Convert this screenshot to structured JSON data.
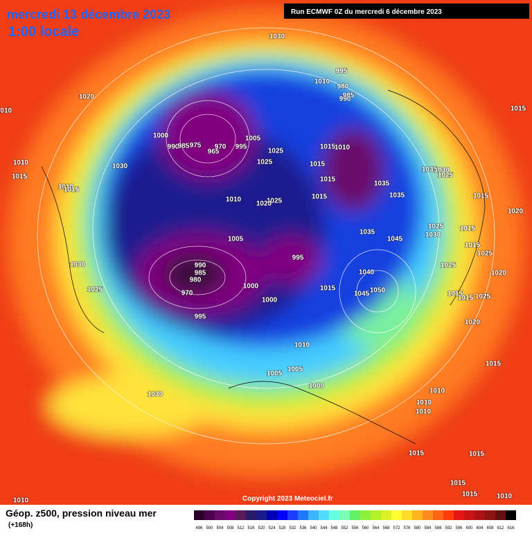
{
  "header": {
    "title": "mercredi 13 décembre 2023",
    "subtitle": "1:00 locale",
    "run": "Run ECMWF 0Z du mercredi 6 décembre 2023"
  },
  "copyright": "Copyright 2023 Meteociel.fr",
  "legend": {
    "title": "Géop. z500, pression niveau mer",
    "lead": "(+168h)",
    "values": [
      496,
      500,
      504,
      508,
      512,
      516,
      520,
      524,
      528,
      532,
      536,
      540,
      544,
      548,
      552,
      556,
      560,
      564,
      568,
      572,
      576,
      580,
      584,
      588,
      592,
      596,
      600,
      604,
      608,
      612,
      616
    ],
    "colors": [
      "#2a002a",
      "#4b0050",
      "#6a0a6a",
      "#800080",
      "#5a1a5a",
      "#2a1a6a",
      "#1a1a8a",
      "#0000b4",
      "#0000ff",
      "#1e3cff",
      "#1e78ff",
      "#3cb4ff",
      "#50dcff",
      "#64ffdc",
      "#78ffb4",
      "#64f064",
      "#8cf03c",
      "#b4f028",
      "#dcf028",
      "#ffff32",
      "#ffdc28",
      "#ffb41e",
      "#ff8c1e",
      "#ff6414",
      "#ff3c0a",
      "#e61414",
      "#c81414",
      "#aa1414",
      "#8c1414",
      "#641010",
      "#000000"
    ]
  },
  "isobar_labels": [
    "1030",
    "1020",
    "1010",
    "995",
    "1010",
    "980",
    "985",
    "990",
    "1015",
    "1000",
    "990",
    "985",
    "975",
    "970",
    "965",
    "995",
    "1005",
    "1025",
    "1025",
    "1015",
    "1010",
    "1015",
    "1010",
    "1030",
    "1015",
    "1035",
    "1030",
    "1025",
    "1035",
    "1015",
    "1010",
    "1015",
    "1010",
    "1025",
    "1020",
    "1015",
    "1035",
    "1015",
    "1020",
    "1035",
    "1045",
    "1025",
    "1030",
    "1015",
    "1005",
    "995",
    "1015",
    "1025",
    "1030",
    "990",
    "985",
    "980",
    "970",
    "1000",
    "1040",
    "1025",
    "1020",
    "1025",
    "1050",
    "1045",
    "1015",
    "1000",
    "1015",
    "1015",
    "1025",
    "995",
    "1020",
    "1010",
    "1015",
    "1005",
    "1005",
    "1000",
    "1030",
    "1010",
    "1010",
    "1010",
    "1015",
    "1015",
    "1015",
    "1010",
    "1015",
    "1010"
  ]
}
